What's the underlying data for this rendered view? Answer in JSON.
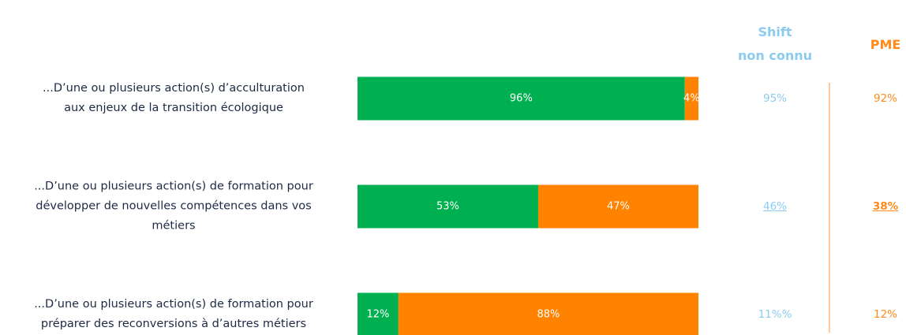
{
  "chart_data": {
    "type": "stacked-bar",
    "categories": [
      "...D’une ou plusieurs action(s) d’acculturation\naux enjeux de la transition écologique",
      "...D’une ou plusieurs action(s) de formation pour\ndévelopper de nouvelles compétences dans vos\nmétiers",
      "...D’une ou plusieurs action(s) de formation pour\npréparer des reconversions à d’autres métiers"
    ],
    "xlim": [
      0,
      100
    ],
    "series": [
      {
        "color": "#00b050",
        "values": [
          96,
          53,
          12
        ],
        "value_labels": [
          "96%",
          "53%",
          "12%"
        ]
      },
      {
        "color": "#ff8200",
        "values": [
          4,
          47,
          88
        ],
        "value_labels": [
          "4%",
          "47%",
          "88%"
        ]
      }
    ],
    "columns": [
      {
        "title": "Shift\nnon connu",
        "color": "#8ccbf0",
        "values": [
          95,
          46,
          11
        ],
        "value_labels": [
          "95%",
          "46%",
          "11%%"
        ]
      },
      {
        "title": "PME",
        "color": "#ff8a1a",
        "values": [
          92,
          38,
          12
        ],
        "value_labels": [
          "92%",
          "38%",
          "12%"
        ]
      }
    ]
  }
}
